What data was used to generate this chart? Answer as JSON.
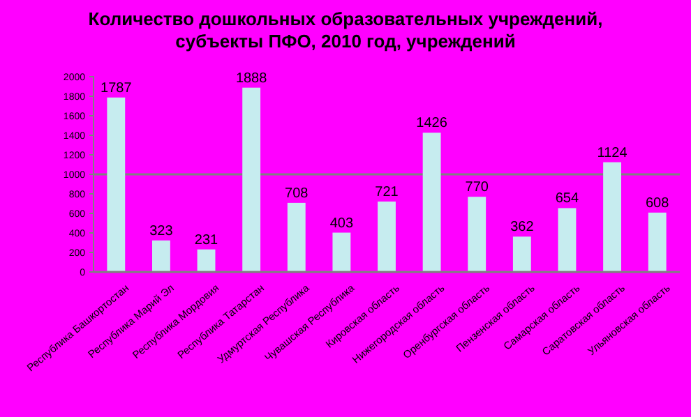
{
  "chart_data": {
    "type": "bar",
    "title": "Количество дошкольных образовательных учреждений,\nсубъекты ПФО, 2010 год, учреждений",
    "categories": [
      "Республика Башкортостан",
      "Республика Марий Эл",
      "Республика Мордовия",
      "Республика Татарстан",
      "Удмуртская Республика",
      "Чувашская Республика",
      "Кировская область",
      "Нижегородская область",
      "Оренбургская область",
      "Пензенская область",
      "Самарская область",
      "Саратовская область",
      "Ульяновская область"
    ],
    "values": [
      1787,
      323,
      231,
      1888,
      708,
      403,
      721,
      1426,
      770,
      362,
      654,
      1124,
      608
    ],
    "color": "#c6ecef",
    "ylim": [
      0,
      2000
    ],
    "yticks": [
      0,
      200,
      400,
      600,
      800,
      1000,
      1200,
      1400,
      1600,
      1800,
      2000
    ],
    "ref_lines": [
      {
        "axis": "y",
        "value": 1000,
        "color": "#808080"
      }
    ],
    "data_labels": true
  }
}
